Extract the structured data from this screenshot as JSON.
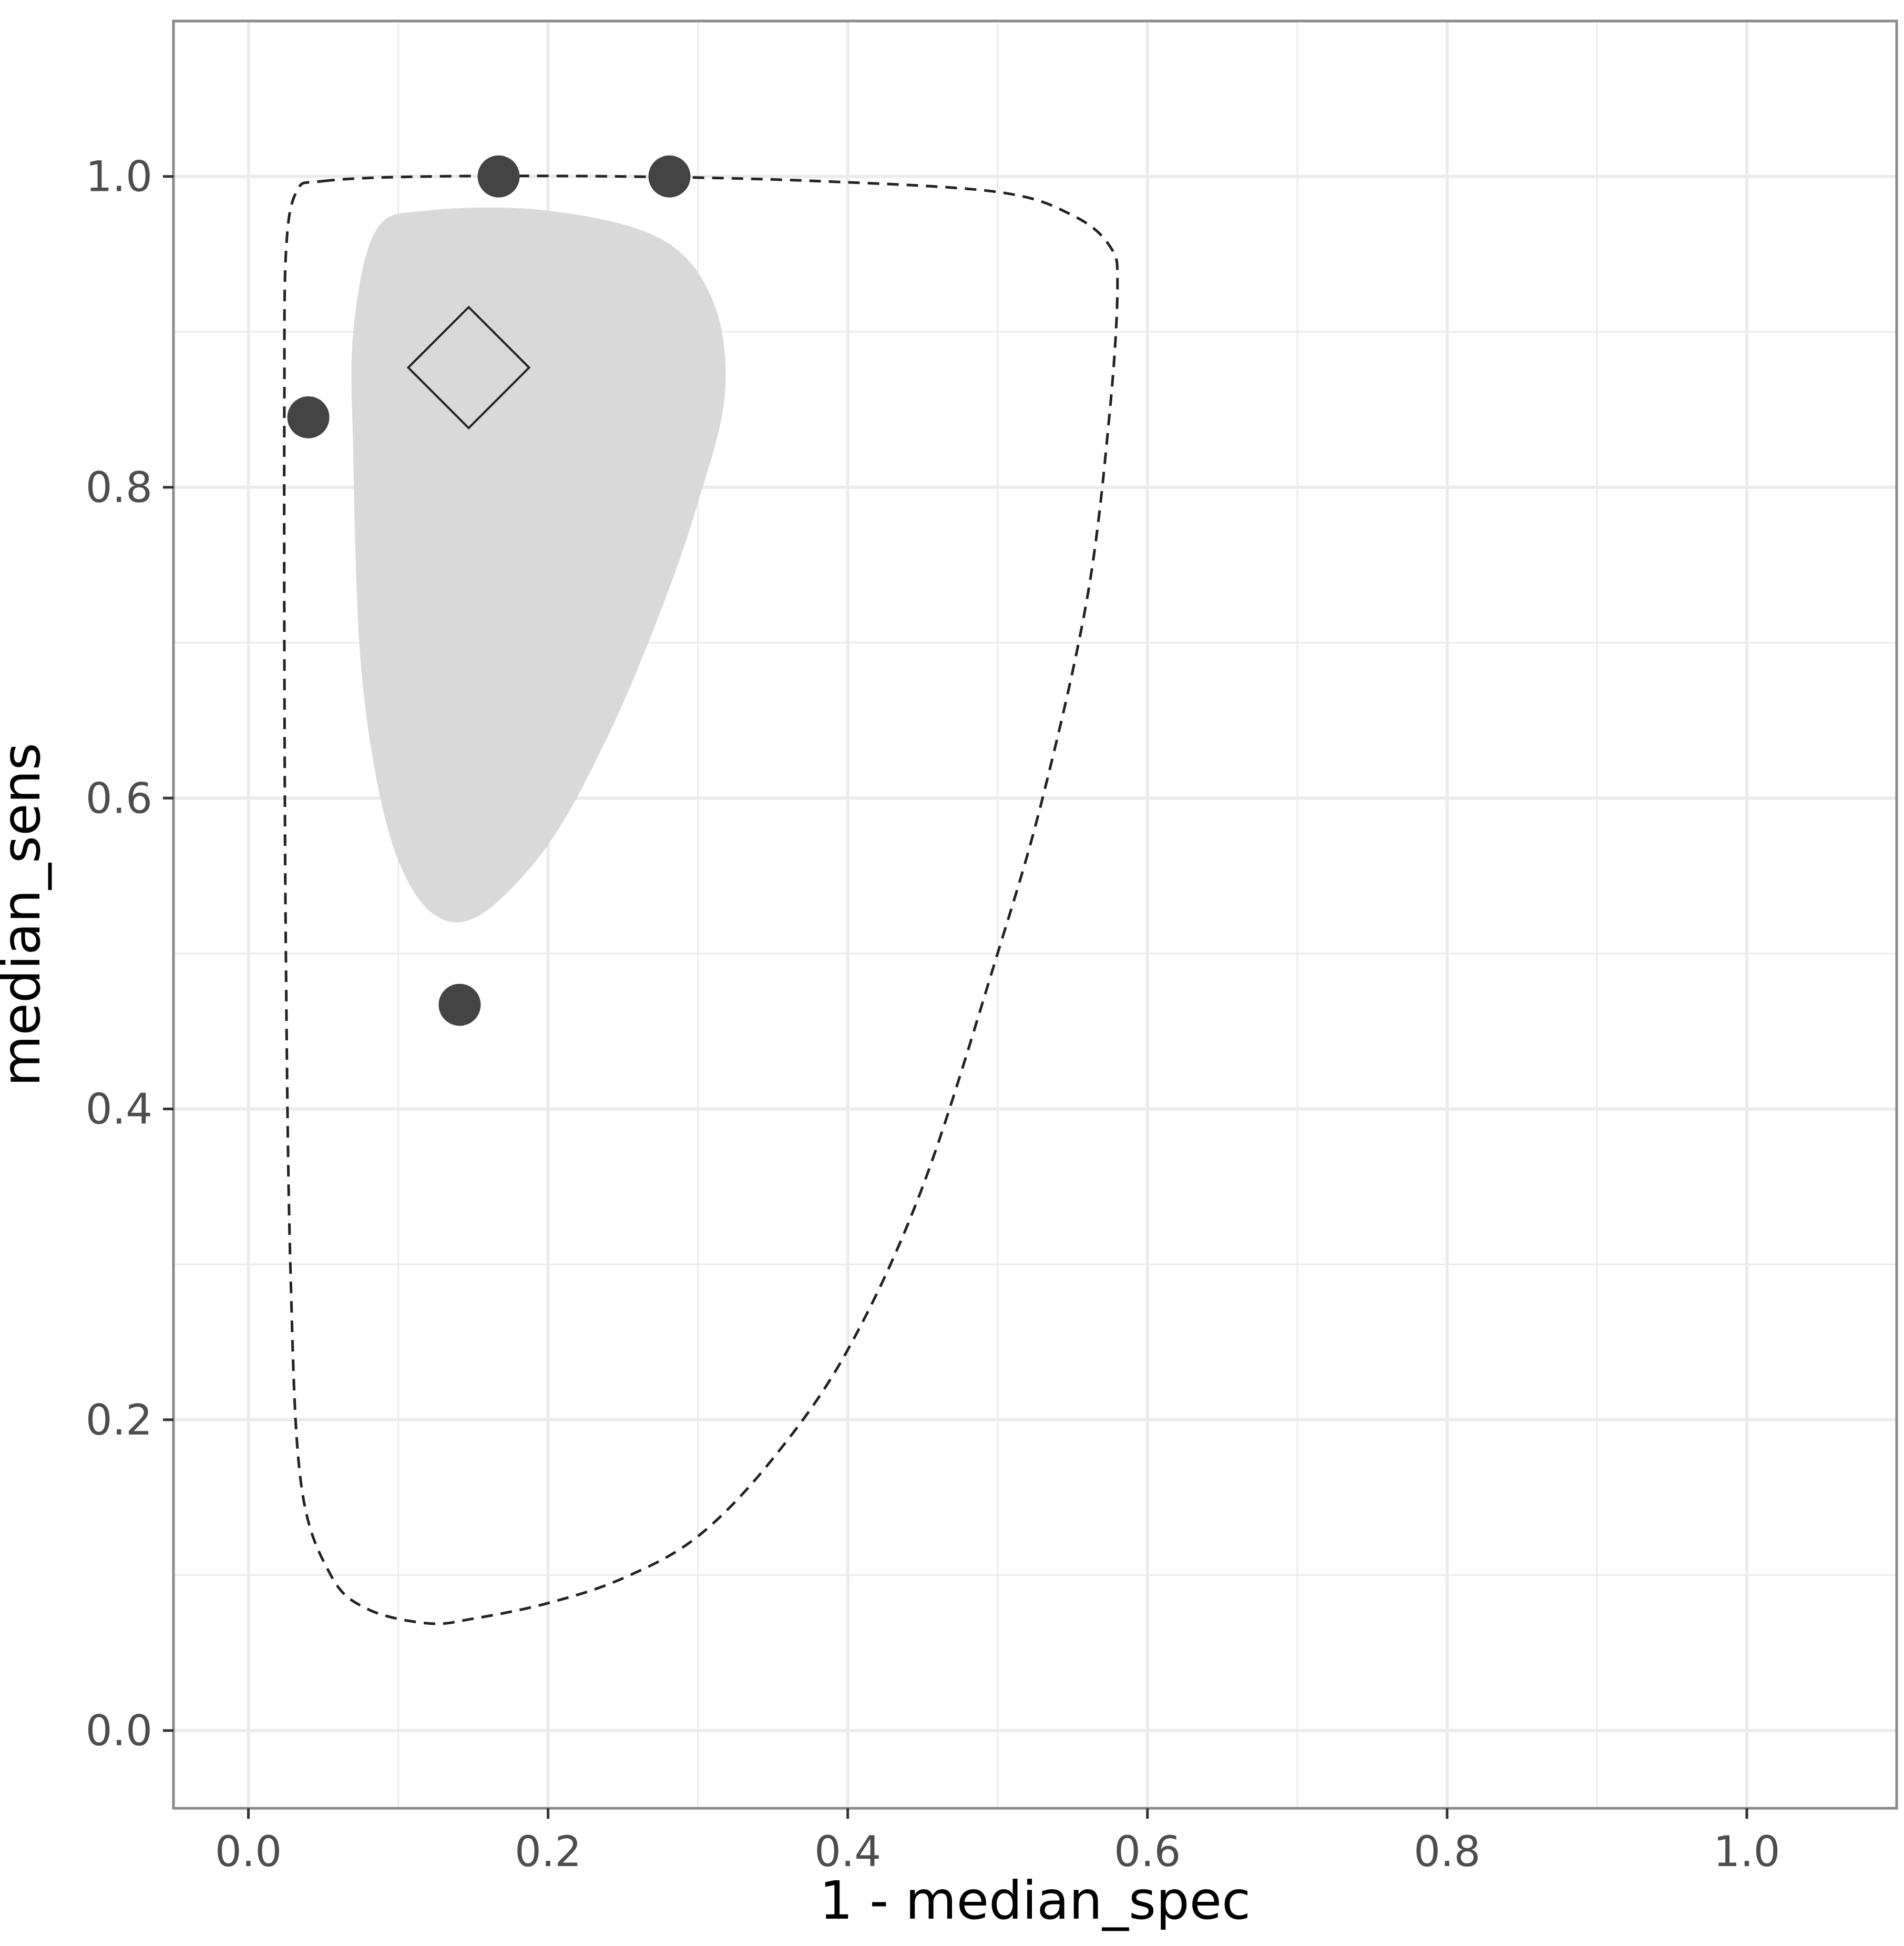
{
  "chart_data": {
    "type": "scatter",
    "xlabel": "1 - median_spec",
    "ylabel": "median_sens",
    "xlim": [
      -0.05,
      1.1
    ],
    "ylim": [
      -0.05,
      1.1
    ],
    "x_ticks": [
      0.0,
      0.2,
      0.4,
      0.6,
      0.8,
      1.0
    ],
    "x_tick_labels": [
      "0.0",
      "0.2",
      "0.4",
      "0.6",
      "0.8",
      "1.0"
    ],
    "y_ticks": [
      0.0,
      0.2,
      0.4,
      0.6,
      0.8,
      1.0
    ],
    "y_tick_labels": [
      "0.0",
      "0.2",
      "0.4",
      "0.6",
      "0.8",
      "1.0"
    ],
    "grid": true,
    "colors": {
      "points": "#444444",
      "confidence_region": "#d9d9d9",
      "prediction_region": "#222222",
      "summary_point": "#222222",
      "grid": "#ebebeb",
      "panel_border": "#8a8a8a"
    },
    "points": [
      {
        "x": 0.04,
        "y": 0.845
      },
      {
        "x": 0.167,
        "y": 1.0
      },
      {
        "x": 0.281,
        "y": 1.0
      },
      {
        "x": 0.141,
        "y": 0.467
      }
    ],
    "summary_point": {
      "x": 0.147,
      "y": 0.877
    },
    "confidence_region": [
      [
        0.119,
        0.978
      ],
      [
        0.085,
        0.965
      ],
      [
        0.07,
        0.9
      ],
      [
        0.07,
        0.82
      ],
      [
        0.074,
        0.7
      ],
      [
        0.084,
        0.62
      ],
      [
        0.1,
        0.56
      ],
      [
        0.124,
        0.525
      ],
      [
        0.155,
        0.525
      ],
      [
        0.2,
        0.57
      ],
      [
        0.24,
        0.64
      ],
      [
        0.275,
        0.72
      ],
      [
        0.3,
        0.79
      ],
      [
        0.318,
        0.86
      ],
      [
        0.31,
        0.92
      ],
      [
        0.275,
        0.96
      ],
      [
        0.2,
        0.978
      ]
    ],
    "prediction_region": [
      [
        0.05,
        0.997
      ],
      [
        0.12,
        1.0
      ],
      [
        0.25,
        1.0
      ],
      [
        0.38,
        0.997
      ],
      [
        0.5,
        0.99
      ],
      [
        0.55,
        0.975
      ],
      [
        0.575,
        0.955
      ],
      [
        0.58,
        0.93
      ],
      [
        0.575,
        0.85
      ],
      [
        0.56,
        0.73
      ],
      [
        0.53,
        0.6
      ],
      [
        0.5,
        0.5
      ],
      [
        0.45,
        0.35
      ],
      [
        0.4,
        0.245
      ],
      [
        0.35,
        0.175
      ],
      [
        0.3,
        0.125
      ],
      [
        0.25,
        0.098
      ],
      [
        0.2,
        0.082
      ],
      [
        0.15,
        0.072
      ],
      [
        0.12,
        0.069
      ],
      [
        0.08,
        0.078
      ],
      [
        0.055,
        0.1
      ],
      [
        0.035,
        0.16
      ],
      [
        0.028,
        0.3
      ],
      [
        0.025,
        0.5
      ],
      [
        0.024,
        0.7
      ],
      [
        0.024,
        0.85
      ],
      [
        0.025,
        0.95
      ],
      [
        0.032,
        0.99
      ]
    ]
  }
}
